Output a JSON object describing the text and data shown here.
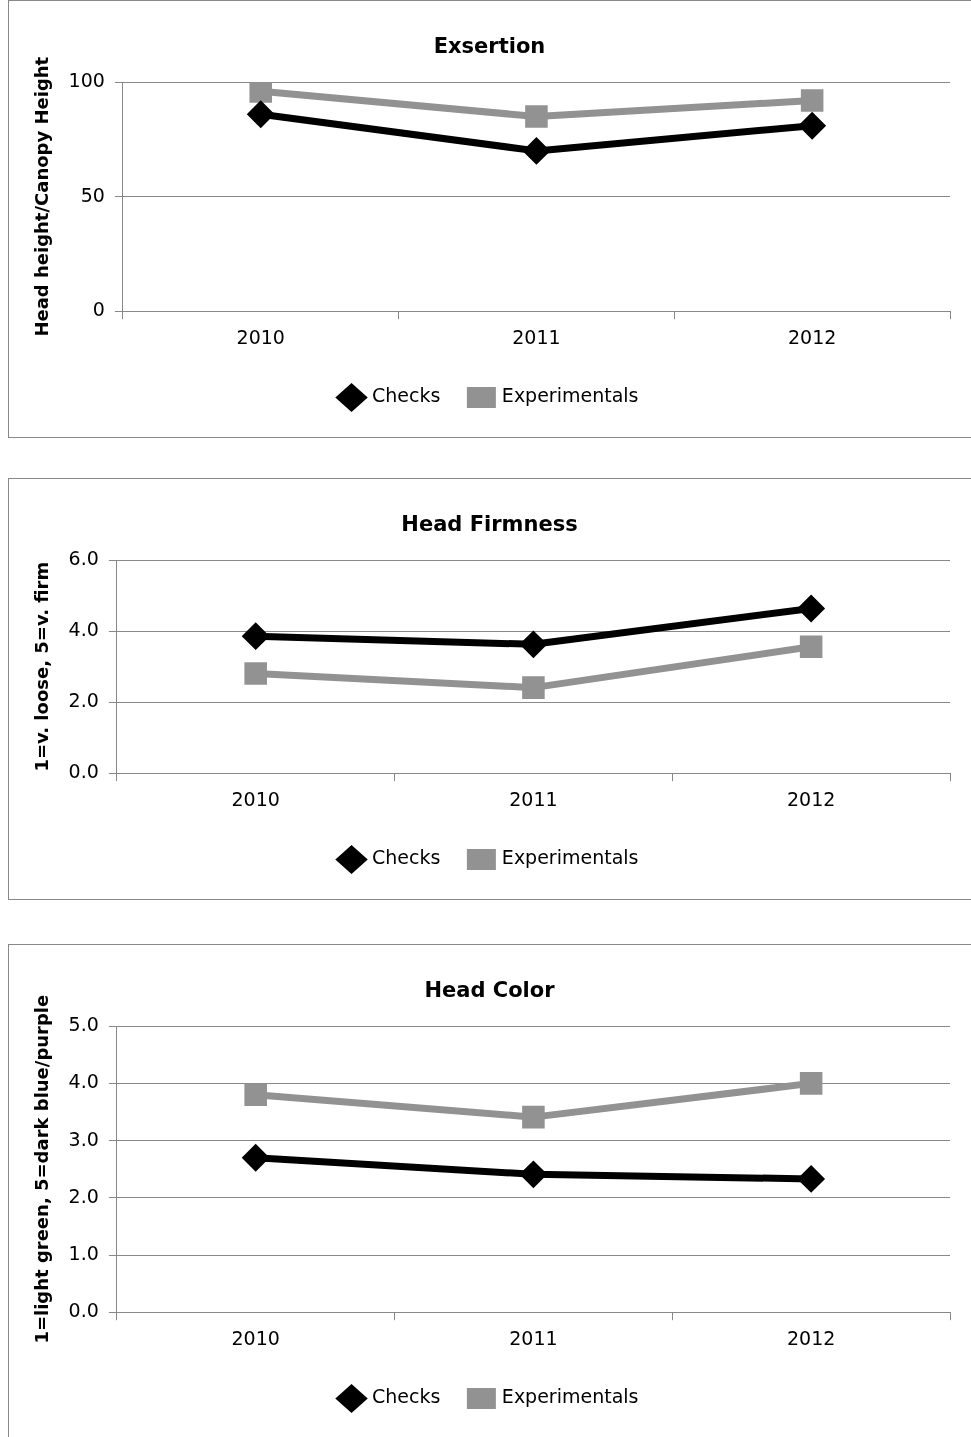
{
  "chart_data": [
    {
      "type": "line",
      "title": "Exsertion",
      "ylabel": "Head height/Canopy Height",
      "categories": [
        "2010",
        "2011",
        "2012"
      ],
      "series": [
        {
          "name": "Checks",
          "color": "#000000",
          "marker": "diamond",
          "values": [
            86,
            70,
            81
          ]
        },
        {
          "name": "Experimentals",
          "color": "#929292",
          "marker": "square",
          "values": [
            96,
            85,
            92
          ]
        }
      ],
      "ylim": [
        0,
        100
      ],
      "yticks": [
        0,
        50,
        100
      ],
      "grid": "y",
      "legend": "bottom",
      "line_style": "solid"
    },
    {
      "type": "line",
      "title": "Head Firmness",
      "ylabel": "1=v. loose, 5=v. firm",
      "categories": [
        "2010",
        "2011",
        "2012"
      ],
      "series": [
        {
          "name": "Checks",
          "color": "#000000",
          "marker": "diamond",
          "values": [
            3.86,
            3.63,
            4.64
          ]
        },
        {
          "name": "Experimentals",
          "color": "#929292",
          "marker": "square",
          "values": [
            2.81,
            2.41,
            3.56
          ]
        }
      ],
      "ylim": [
        0,
        6
      ],
      "yticks": [
        {
          "value": 0,
          "label": "0.0"
        },
        {
          "value": 2,
          "label": "2.0"
        },
        {
          "value": 4,
          "label": "4.0"
        },
        {
          "value": 6,
          "label": "6.0"
        }
      ],
      "grid": "y",
      "legend": "bottom",
      "line_style": "solid"
    },
    {
      "type": "line",
      "title": "Head Color",
      "ylabel": "1=light green, 5=dark blue/purple",
      "categories": [
        "2010",
        "2011",
        "2012"
      ],
      "series": [
        {
          "name": "Checks",
          "color": "#000000",
          "marker": "diamond",
          "values": [
            2.7,
            2.41,
            2.33
          ]
        },
        {
          "name": "Experimentals",
          "color": "#929292",
          "marker": "square",
          "values": [
            3.8,
            3.41,
            4.0
          ]
        }
      ],
      "ylim": [
        0,
        5
      ],
      "yticks": [
        {
          "value": 0,
          "label": "0.0"
        },
        {
          "value": 1,
          "label": "1.0"
        },
        {
          "value": 2,
          "label": "2.0"
        },
        {
          "value": 3,
          "label": "3.0"
        },
        {
          "value": 4,
          "label": "4.0"
        },
        {
          "value": 5,
          "label": "5.0"
        }
      ],
      "grid": "y",
      "legend": "bottom",
      "line_style": "solid"
    }
  ]
}
